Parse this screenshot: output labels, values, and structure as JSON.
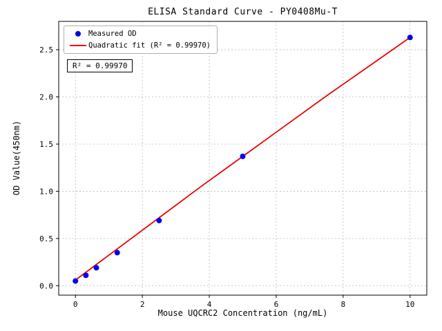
{
  "chart_data": {
    "type": "scatter",
    "title": "ELISA Standard Curve - PY0408Mu-T",
    "xlabel": "Mouse UQCRC2 Concentration (ng/mL)",
    "ylabel": "OD Value(450nm)",
    "xlim": [
      -0.5,
      10.5
    ],
    "ylim": [
      -0.1,
      2.8
    ],
    "xticks": [
      0,
      2,
      4,
      6,
      8,
      10
    ],
    "yticks": [
      0.0,
      0.5,
      1.0,
      1.5,
      2.0,
      2.5
    ],
    "grid": true,
    "grid_style": "dashed",
    "legend_position": "upper left",
    "colors": {
      "scatter": "#0000ee",
      "line": "#ee0000",
      "grid": "#bbbbbb",
      "axis": "#000000"
    },
    "series": [
      {
        "name": "Measured OD",
        "type": "scatter",
        "color": "#0000ee",
        "x": [
          0,
          0.3125,
          0.625,
          1.25,
          2.5,
          5,
          10
        ],
        "y": [
          0.05,
          0.11,
          0.19,
          0.35,
          0.69,
          1.37,
          2.63
        ]
      },
      {
        "name": "Quadratic fit (R² = 0.99970)",
        "type": "line",
        "color": "#ee0000",
        "x": [
          0,
          1.25,
          2.5,
          3.75,
          5,
          6.25,
          7.5,
          8.75,
          10
        ],
        "y": [
          0.06,
          0.39,
          0.72,
          1.05,
          1.37,
          1.69,
          2.01,
          2.32,
          2.63
        ]
      }
    ],
    "annotation": "R² = 0.99970",
    "r_squared": 0.9997
  }
}
